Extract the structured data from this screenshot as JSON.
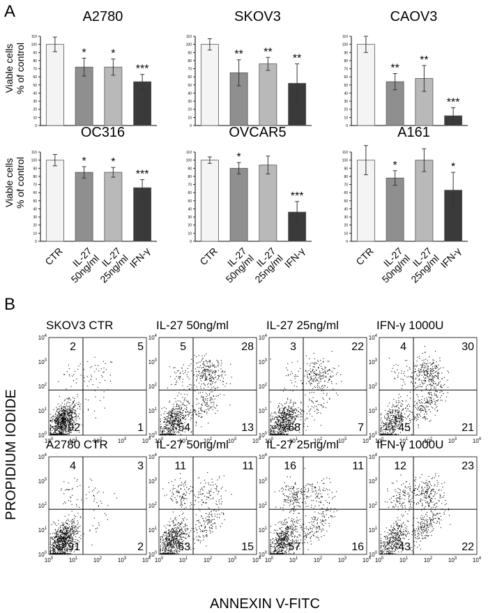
{
  "panels": {
    "a_letter": "A",
    "b_letter": "B"
  },
  "bar_common": {
    "ylabel_line1": "Viable cells",
    "ylabel_line2": "% of control",
    "yticks": [
      "0",
      "10",
      "20",
      "30",
      "40",
      "50",
      "60",
      "70",
      "80",
      "90",
      "100",
      "110"
    ],
    "categories": [
      "CTR",
      "IL-27 50ng/ml",
      "IL-27 25ng/ml",
      "IFN-γ"
    ],
    "xlabels_line1": [
      "CTR",
      "IL-27",
      "IL-27",
      "IFN-γ"
    ],
    "xlabels_line2": [
      "",
      "50ng/ml",
      "25ng/ml",
      ""
    ],
    "bar_colors": [
      "#f4f4f4",
      "#8f8f8f",
      "#b9b9b9",
      "#3a3a3a"
    ]
  },
  "flow_common": {
    "xlabel": "ANNEXIN V-FITC",
    "ylabel": "PROPIDIUM IODIDE",
    "tick_bases": [
      "10",
      "10",
      "10",
      "10",
      "10"
    ],
    "tick_exps": [
      "0",
      "1",
      "2",
      "3",
      "4"
    ]
  },
  "chart_data": [
    {
      "type": "bar",
      "title": "A2780",
      "categories": [
        "CTR",
        "IL-27 50ng/ml",
        "IL-27 25ng/ml",
        "IFN-γ"
      ],
      "values": [
        100,
        72,
        72,
        54
      ],
      "errors": [
        9,
        11,
        10,
        9
      ],
      "significance": [
        "",
        "*",
        "*",
        "***"
      ],
      "ylim": [
        0,
        110
      ]
    },
    {
      "type": "bar",
      "title": "SKOV3",
      "categories": [
        "CTR",
        "IL-27 50ng/ml",
        "IL-27 25ng/ml",
        "IFN-γ"
      ],
      "values": [
        100,
        65,
        76,
        52
      ],
      "errors": [
        7,
        16,
        8,
        24
      ],
      "significance": [
        "",
        "**",
        "**",
        "**"
      ],
      "ylim": [
        0,
        110
      ]
    },
    {
      "type": "bar",
      "title": "CAOV3",
      "categories": [
        "CTR",
        "IL-27 50ng/ml",
        "IL-27 25ng/ml",
        "IFN-γ"
      ],
      "values": [
        100,
        54,
        58,
        12
      ],
      "errors": [
        10,
        10,
        16,
        10
      ],
      "significance": [
        "",
        "**",
        "**",
        "***"
      ],
      "ylim": [
        0,
        110
      ]
    },
    {
      "type": "bar",
      "title": "OC316",
      "categories": [
        "CTR",
        "IL-27 50ng/ml",
        "IL-27 25ng/ml",
        "IFN-γ"
      ],
      "values": [
        100,
        85,
        85,
        66
      ],
      "errors": [
        7,
        7,
        6,
        10
      ],
      "significance": [
        "",
        "*",
        "*",
        "***"
      ],
      "ylim": [
        0,
        110
      ]
    },
    {
      "type": "bar",
      "title": "OVCAR5",
      "categories": [
        "CTR",
        "IL-27 50ng/ml",
        "IL-27 25ng/ml",
        "IFN-γ"
      ],
      "values": [
        100,
        90,
        94,
        36
      ],
      "errors": [
        4,
        7,
        11,
        13
      ],
      "significance": [
        "",
        "*",
        "",
        "***"
      ],
      "ylim": [
        0,
        110
      ]
    },
    {
      "type": "bar",
      "title": "A161",
      "categories": [
        "CTR",
        "IL-27 50ng/ml",
        "IL-27 25ng/ml",
        "IFN-γ"
      ],
      "values": [
        100,
        78,
        100,
        63
      ],
      "errors": [
        18,
        9,
        14,
        22
      ],
      "significance": [
        "",
        "*",
        "",
        "*"
      ],
      "ylim": [
        0,
        110
      ]
    },
    {
      "type": "scatter",
      "cell_line": "SKOV3",
      "treatment": "CTR",
      "quadrants": [
        "2",
        "5",
        "92",
        "1"
      ],
      "xlim": [
        1,
        10000
      ],
      "ylim": [
        1,
        10000
      ],
      "log": true
    },
    {
      "type": "scatter",
      "treatment": "IL-27 50ng/ml",
      "quadrants": [
        "5",
        "28",
        "54",
        "13"
      ],
      "xlim": [
        1,
        10000
      ],
      "ylim": [
        1,
        10000
      ],
      "log": true
    },
    {
      "type": "scatter",
      "treatment": "IL-27 25ng/ml",
      "quadrants": [
        "3",
        "22",
        "68",
        "7"
      ],
      "xlim": [
        1,
        10000
      ],
      "ylim": [
        1,
        10000
      ],
      "log": true
    },
    {
      "type": "scatter",
      "treatment": "IFN-γ 1000U",
      "quadrants": [
        "4",
        "30",
        "45",
        "21"
      ],
      "xlim": [
        1,
        10000
      ],
      "ylim": [
        1,
        10000
      ],
      "log": true
    },
    {
      "type": "scatter",
      "cell_line": "A2780",
      "treatment": "CTR",
      "quadrants": [
        "4",
        "3",
        "91",
        "2"
      ],
      "xlim": [
        1,
        10000
      ],
      "ylim": [
        1,
        10000
      ],
      "log": true
    },
    {
      "type": "scatter",
      "treatment": "IL-27 50ng/ml",
      "quadrants": [
        "11",
        "11",
        "63",
        "15"
      ],
      "xlim": [
        1,
        10000
      ],
      "ylim": [
        1,
        10000
      ],
      "log": true
    },
    {
      "type": "scatter",
      "treatment": "IL-27 25ng/ml",
      "quadrants": [
        "16",
        "11",
        "57",
        "16"
      ],
      "xlim": [
        1,
        10000
      ],
      "ylim": [
        1,
        10000
      ],
      "log": true
    },
    {
      "type": "scatter",
      "treatment": "IFN-γ 1000U",
      "quadrants": [
        "12",
        "23",
        "43",
        "22"
      ],
      "xlim": [
        1,
        10000
      ],
      "ylim": [
        1,
        10000
      ],
      "log": true
    }
  ]
}
